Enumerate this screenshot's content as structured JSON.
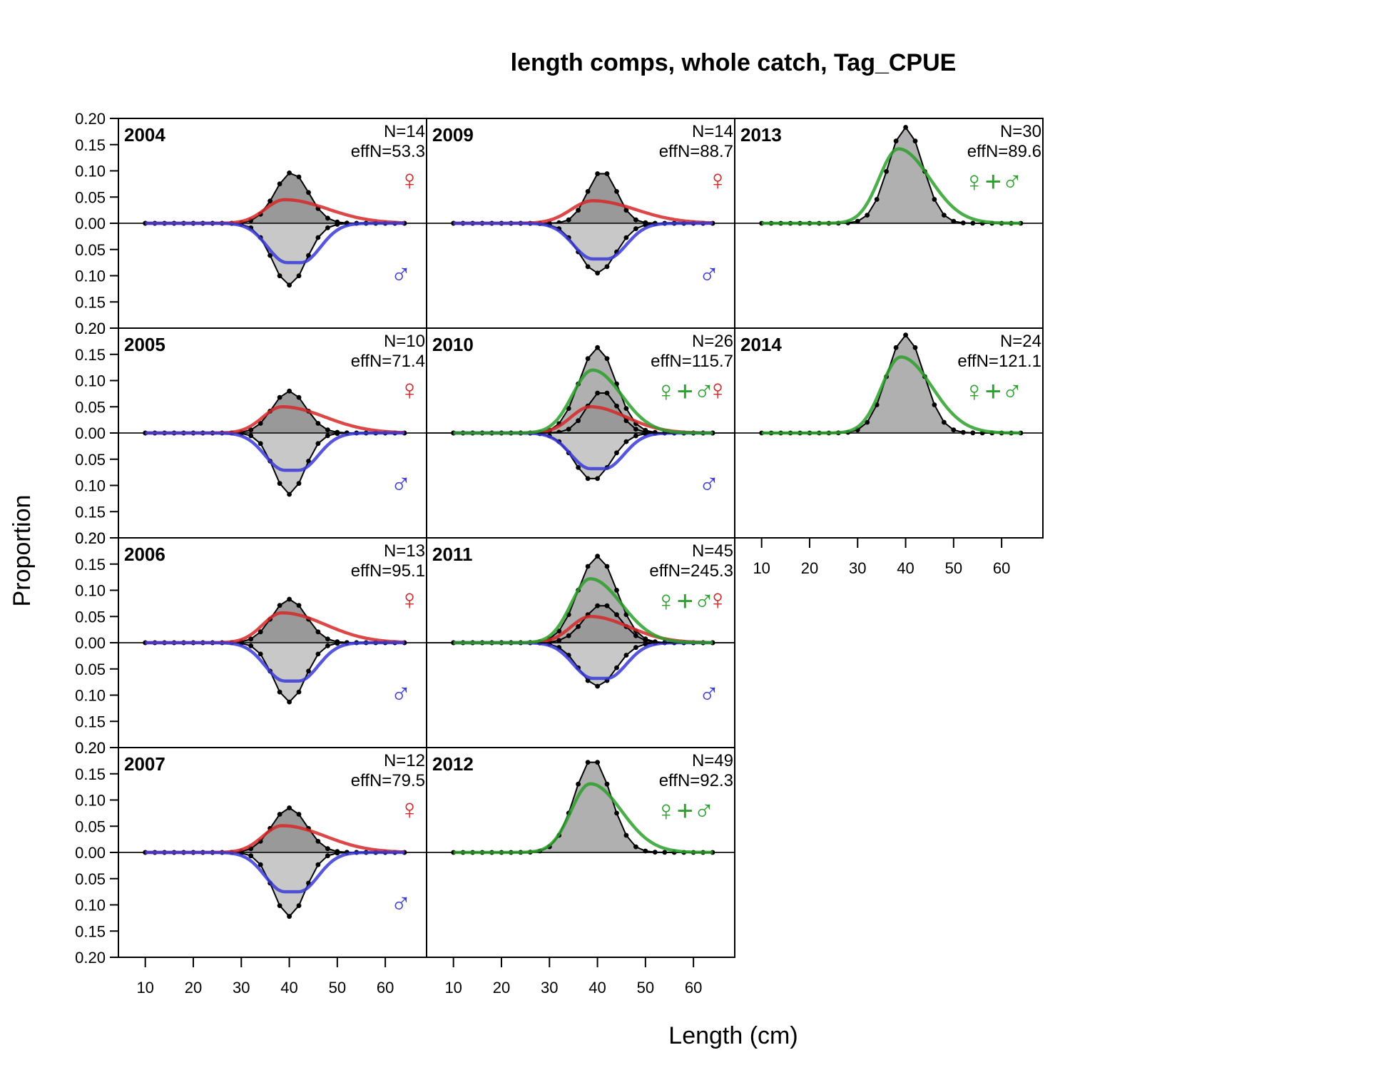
{
  "chart_data": {
    "type": "area",
    "title": "length comps, whole catch, Tag_CPUE",
    "xlabel": "Length (cm)",
    "ylabel": "Proportion",
    "xlim": [
      4.4,
      68.6
    ],
    "ylim": [
      -0.2,
      0.2
    ],
    "x_ticks": [
      "10",
      "20",
      "30",
      "40",
      "50",
      "60"
    ],
    "y_ticks": [
      "0.20",
      "0.15",
      "0.10",
      "0.05",
      "0.00",
      "0.05",
      "0.10",
      "0.15",
      "0.20"
    ],
    "bins_start": 10,
    "bins_step": 2,
    "colors": {
      "female": "#d62728",
      "male": "#3a3ad8",
      "combined": "#2ca02c",
      "female_fill": "#999999",
      "male_fill": "#c8c8c8",
      "combined_fill": "#b0b0b0"
    },
    "symbols": {
      "female": "♀",
      "male": "♂",
      "combined": "♀+♂"
    },
    "panels": [
      {
        "year": "2004",
        "N": "N=14",
        "effN": "effN=53.3",
        "type": "sex",
        "fem_obs": {
          "center": 40.5,
          "sd": 3.5,
          "peak": 0.097
        },
        "fem_exp": {
          "center": 39.0,
          "sdl": 4.0,
          "sdr": 9.0,
          "peak": 0.045
        },
        "male_obs": {
          "center": 40.0,
          "sd": 3.5,
          "peak": 0.118
        },
        "male_exp": {
          "center": 41.0,
          "sdl": 4.0,
          "sdr": 4.0,
          "plateau": 3.0,
          "peak": 0.075
        }
      },
      {
        "year": "2005",
        "N": "N=10",
        "effN": "effN=71.4",
        "type": "sex",
        "fem_obs": {
          "center": 40.0,
          "sd": 3.5,
          "peak": 0.08
        },
        "fem_exp": {
          "center": 38.5,
          "sdl": 4.0,
          "sdr": 9.0,
          "peak": 0.05
        },
        "male_obs": {
          "center": 40.0,
          "sd": 3.2,
          "peak": 0.117
        },
        "male_exp": {
          "center": 40.5,
          "sdl": 4.0,
          "sdr": 4.0,
          "plateau": 3.0,
          "peak": 0.071
        }
      },
      {
        "year": "2006",
        "N": "N=13",
        "effN": "effN=95.1",
        "type": "sex",
        "fem_obs": {
          "center": 40.0,
          "sd": 3.6,
          "peak": 0.083
        },
        "fem_exp": {
          "center": 38.5,
          "sdl": 4.0,
          "sdr": 9.0,
          "peak": 0.057
        },
        "male_obs": {
          "center": 40.0,
          "sd": 3.3,
          "peak": 0.113
        },
        "male_exp": {
          "center": 40.5,
          "sdl": 4.0,
          "sdr": 4.0,
          "plateau": 3.0,
          "peak": 0.073
        }
      },
      {
        "year": "2007",
        "N": "N=12",
        "effN": "effN=79.5",
        "type": "sex",
        "fem_obs": {
          "center": 40.0,
          "sd": 3.6,
          "peak": 0.085
        },
        "fem_exp": {
          "center": 38.5,
          "sdl": 4.0,
          "sdr": 9.0,
          "peak": 0.051
        },
        "male_obs": {
          "center": 40.0,
          "sd": 3.3,
          "peak": 0.122
        },
        "male_exp": {
          "center": 40.5,
          "sdl": 4.0,
          "sdr": 4.0,
          "plateau": 3.0,
          "peak": 0.075
        }
      },
      {
        "year": "2009",
        "N": "N=14",
        "effN": "effN=88.7",
        "type": "sex",
        "fem_obs": {
          "center": 41.0,
          "sd": 3.0,
          "peak": 0.1
        },
        "fem_exp": {
          "center": 39.0,
          "sdl": 4.5,
          "sdr": 9.0,
          "peak": 0.043
        },
        "male_obs": {
          "center": 40.0,
          "sd": 3.8,
          "peak": 0.095
        },
        "male_exp": {
          "center": 40.5,
          "sdl": 4.0,
          "sdr": 4.0,
          "plateau": 3.0,
          "peak": 0.068
        }
      },
      {
        "year": "2010",
        "N": "N=26",
        "effN": "effN=115.7",
        "type": "both",
        "comb_obs": {
          "center": 40.0,
          "sd": 3.8,
          "peak": 0.163
        },
        "comb_exp": {
          "center": 39.0,
          "sdl": 4.2,
          "sdr": 6.0,
          "peak": 0.12
        },
        "fem_obs": {
          "center": 41.0,
          "sd": 3.2,
          "peak": 0.08
        },
        "fem_exp": {
          "center": 38.5,
          "sdl": 4.0,
          "sdr": 7.5,
          "peak": 0.05
        },
        "male_obs": {
          "center": 39.0,
          "sd": 3.8,
          "peak": 0.09
        },
        "male_exp": {
          "center": 40.0,
          "sdl": 4.0,
          "sdr": 4.0,
          "plateau": 3.0,
          "peak": 0.068
        }
      },
      {
        "year": "2011",
        "N": "N=45",
        "effN": "effN=245.3",
        "type": "both",
        "comb_obs": {
          "center": 40.0,
          "sd": 4.0,
          "peak": 0.165
        },
        "comb_exp": {
          "center": 38.5,
          "sdl": 4.0,
          "sdr": 6.5,
          "peak": 0.122
        },
        "fem_obs": {
          "center": 41.0,
          "sd": 3.8,
          "peak": 0.073
        },
        "fem_exp": {
          "center": 38.5,
          "sdl": 4.0,
          "sdr": 8.0,
          "peak": 0.05
        },
        "male_obs": {
          "center": 40.0,
          "sd": 3.8,
          "peak": 0.083
        },
        "male_exp": {
          "center": 40.5,
          "sdl": 4.0,
          "sdr": 4.0,
          "plateau": 3.0,
          "peak": 0.068
        }
      },
      {
        "year": "2012",
        "N": "N=49",
        "effN": "effN=92.3",
        "type": "combined",
        "comb_obs": {
          "center": 39.0,
          "sd": 3.8,
          "peak": 0.178
        },
        "comb_exp": {
          "center": 38.5,
          "sdl": 4.0,
          "sdr": 6.5,
          "peak": 0.131
        }
      },
      {
        "year": "2013",
        "N": "N=30",
        "effN": "effN=89.6",
        "type": "combined",
        "comb_obs": {
          "center": 40.0,
          "sd": 3.6,
          "peak": 0.183
        },
        "comb_exp": {
          "center": 38.5,
          "sdl": 4.0,
          "sdr": 6.5,
          "peak": 0.142
        }
      },
      {
        "year": "2014",
        "N": "N=24",
        "effN": "effN=121.1",
        "type": "combined",
        "comb_obs": {
          "center": 40.0,
          "sd": 3.8,
          "peak": 0.187
        },
        "comb_exp": {
          "center": 39.0,
          "sdl": 4.0,
          "sdr": 6.5,
          "peak": 0.145
        }
      }
    ]
  }
}
